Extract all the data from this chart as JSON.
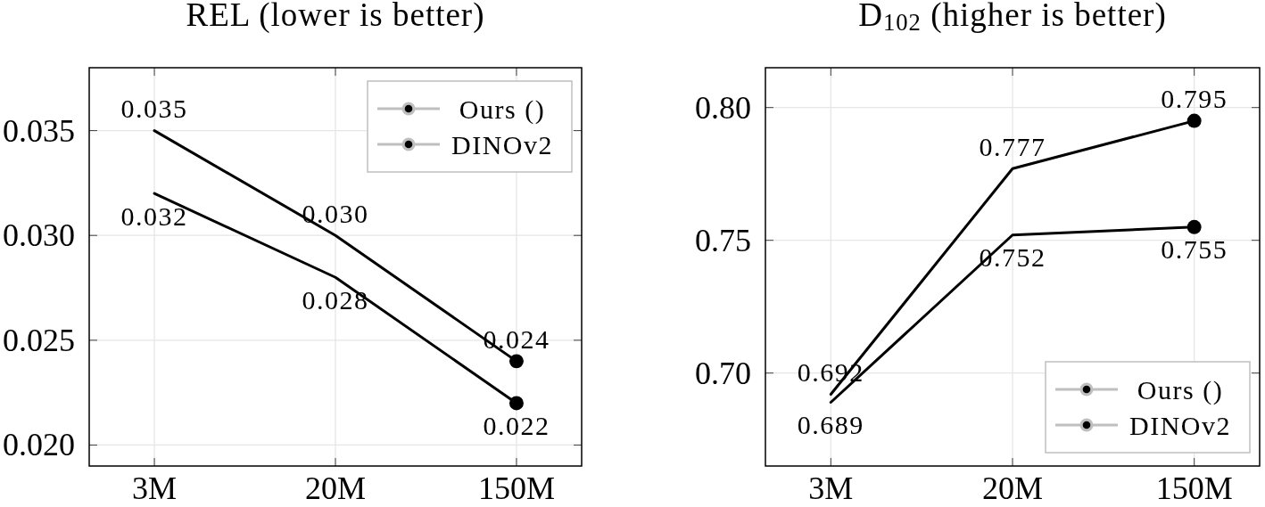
{
  "chart_data": [
    {
      "type": "line",
      "title": "REL (lower is better)",
      "categories": [
        "3M",
        "20M",
        "150M"
      ],
      "series": [
        {
          "name": "Ours ()",
          "color": "#000000",
          "values": [
            0.032,
            0.028,
            0.022
          ],
          "value_labels": [
            "0.032",
            "0.028",
            "0.022"
          ]
        },
        {
          "name": "DINOv2",
          "color": "#000000",
          "values": [
            0.035,
            0.03,
            0.024
          ],
          "value_labels": [
            "0.035",
            "0.030",
            "0.024"
          ]
        },
        {
          "type": "scatter",
          "x": [
            "150M",
            "150M"
          ],
          "color": "#000000",
          "values": [
            0.022,
            0.024
          ],
          "marker": "circle"
        }
      ],
      "ylim": [
        0.019,
        0.038
      ],
      "yticks": [
        {
          "value": 0.02,
          "label": "0.020"
        },
        0.025,
        {
          "value": 0.03,
          "label": "0.030"
        },
        0.035
      ],
      "grid": true,
      "legend": "top right",
      "line_style": "solid"
    },
    {
      "type": "line",
      "title": "D$_{102}$ (higher is better)",
      "categories": [
        "3M",
        "20M",
        "150M"
      ],
      "series": [
        {
          "name": "Ours ()",
          "color": "#000000",
          "values": [
            0.692,
            0.777,
            0.795
          ],
          "value_labels": [
            "0.692",
            "0.777",
            "0.795"
          ]
        },
        {
          "name": "DINOv2",
          "color": "#000000",
          "values": [
            0.689,
            0.752,
            0.755
          ],
          "value_labels": [
            "0.689",
            "0.752",
            "0.755"
          ]
        },
        {
          "type": "scatter",
          "x": [
            "150M",
            "150M"
          ],
          "color": "#000000",
          "values": [
            0.795,
            0.755
          ],
          "marker": "circle"
        }
      ],
      "ylim": [
        0.665,
        0.815
      ],
      "yticks": [
        {
          "value": 0.7,
          "label": "0.70"
        },
        0.75,
        {
          "value": 0.8,
          "label": "0.80"
        }
      ],
      "grid": true,
      "legend": "bottom right",
      "line_style": "solid"
    }
  ]
}
